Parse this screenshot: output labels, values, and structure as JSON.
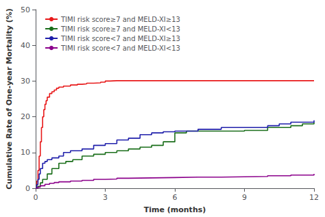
{
  "chart_data": {
    "type": "step",
    "xlabel": "Time (months)",
    "ylabel": "Cumulative Rate of One-year Mortality (%)",
    "xlim": [
      0,
      12
    ],
    "ylim": [
      0,
      50
    ],
    "xticks": [
      0,
      3,
      6,
      9,
      12
    ],
    "yticks": [
      0,
      10,
      20,
      30,
      40,
      50
    ],
    "grid": false,
    "legend": "upper left",
    "series": [
      {
        "name": "TIMI risk score≥7 and MELD-XI≥13",
        "color": "#e8191a",
        "x": [
          0,
          0.05,
          0.1,
          0.15,
          0.2,
          0.25,
          0.3,
          0.35,
          0.4,
          0.45,
          0.5,
          0.6,
          0.7,
          0.8,
          0.9,
          1.0,
          1.2,
          1.5,
          1.8,
          2.0,
          2.2,
          2.5,
          2.8,
          3.0,
          3.2,
          3.5,
          4.0,
          5.0,
          6.0,
          7.0,
          8.0,
          9.0,
          10.0,
          11.0,
          12.0
        ],
        "values": [
          0,
          2,
          5,
          9,
          13,
          17,
          20,
          22,
          23.5,
          24.5,
          25.5,
          26.5,
          27,
          27.5,
          28,
          28.3,
          28.6,
          28.9,
          29.1,
          29.2,
          29.4,
          29.5,
          29.7,
          30,
          30.1,
          30.1,
          30.1,
          30.1,
          30.1,
          30.1,
          30.1,
          30.1,
          30.1,
          30.1,
          30.1
        ]
      },
      {
        "name": "TIMI risk score≥7 and MELD-XI<13",
        "color": "#1a6e1a",
        "x": [
          0,
          0.1,
          0.2,
          0.3,
          0.5,
          0.7,
          1.0,
          1.3,
          1.6,
          2.0,
          2.5,
          3.0,
          3.5,
          4.0,
          4.5,
          5.0,
          5.5,
          6.0,
          6.5,
          7.0,
          8.0,
          9.0,
          10.0,
          11.0,
          11.5,
          12.0
        ],
        "values": [
          0,
          0.5,
          1.5,
          2.5,
          4,
          5.5,
          7,
          7.5,
          8,
          9,
          9.5,
          10,
          10.5,
          11,
          11.5,
          12,
          13,
          15.5,
          16,
          16,
          16,
          16.2,
          17,
          17.5,
          18,
          18.5
        ]
      },
      {
        "name": "TIMI risk score<7 and MELD-XI≥13",
        "color": "#1f1faa",
        "x": [
          0,
          0.05,
          0.1,
          0.15,
          0.2,
          0.3,
          0.4,
          0.5,
          0.7,
          1.0,
          1.2,
          1.5,
          2.0,
          2.5,
          3.0,
          3.5,
          4.0,
          4.5,
          5.0,
          5.5,
          6.0,
          6.5,
          7.0,
          8.0,
          9.0,
          10.0,
          10.5,
          11.0,
          12.0
        ],
        "values": [
          0,
          1,
          2.5,
          4,
          5.5,
          7,
          7.5,
          8,
          8.5,
          9,
          10,
          10.5,
          11,
          12,
          12.5,
          13.5,
          14,
          15,
          15.5,
          15.8,
          16,
          16,
          16.5,
          17,
          17,
          17.5,
          18,
          18.5,
          19
        ]
      },
      {
        "name": "TIMI risk score<7 and MELD-XI<13",
        "color": "#8b008b",
        "x": [
          0,
          0.1,
          0.2,
          0.4,
          0.6,
          0.8,
          1.0,
          1.5,
          2.0,
          2.5,
          3.0,
          3.5,
          4.0,
          5.0,
          6.0,
          7.0,
          8.0,
          9.0,
          10.0,
          11.0,
          12.0
        ],
        "values": [
          0,
          0.3,
          0.7,
          1.1,
          1.4,
          1.6,
          1.8,
          2.0,
          2.2,
          2.5,
          2.6,
          2.8,
          2.9,
          3.0,
          3.1,
          3.1,
          3.2,
          3.3,
          3.5,
          3.7,
          4.0
        ]
      }
    ]
  }
}
